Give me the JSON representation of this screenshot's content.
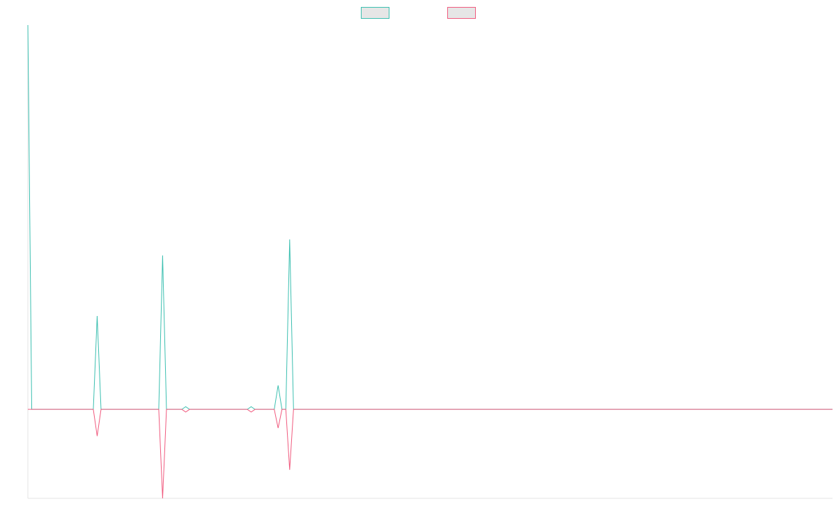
{
  "chart_data": {
    "type": "line",
    "title": "",
    "xlabel": "",
    "ylabel": "",
    "legend_position": "top-center",
    "grid": false,
    "x": [
      0,
      1,
      2,
      3,
      4,
      5,
      6,
      7,
      8,
      9,
      10,
      11,
      12,
      13,
      14,
      15,
      16,
      17,
      18,
      19,
      20,
      21,
      22,
      23,
      24,
      25,
      26,
      27,
      28,
      29,
      30,
      31,
      32,
      33,
      34,
      35,
      36,
      37,
      38,
      39,
      40,
      41,
      42,
      43,
      44,
      45,
      46,
      47,
      48,
      49,
      50,
      51,
      52,
      53,
      54,
      55,
      56,
      57,
      58,
      59,
      60,
      61,
      62,
      63,
      64,
      65,
      66,
      67,
      68,
      69,
      70,
      71,
      72,
      73,
      74,
      75,
      76,
      77,
      78,
      79,
      80,
      81,
      82,
      83,
      84,
      85,
      86,
      87,
      88,
      89,
      90,
      91,
      92,
      93,
      94,
      95,
      96,
      97,
      98,
      99,
      100,
      101,
      102,
      103,
      104,
      105,
      106,
      107,
      108,
      109,
      110,
      111,
      112,
      113,
      114,
      115,
      116,
      117,
      118,
      119,
      120,
      121,
      122,
      123,
      124,
      125,
      126,
      127,
      128,
      129,
      130,
      131,
      132,
      133,
      134,
      135,
      136,
      137,
      138,
      139,
      140,
      141,
      142,
      143,
      144,
      145,
      146,
      147,
      148,
      149,
      150,
      151,
      152,
      153,
      154,
      155,
      156,
      157,
      158,
      159,
      160,
      161,
      162,
      163,
      164,
      165,
      166,
      167,
      168,
      169,
      170,
      171,
      172,
      173,
      174,
      175,
      176,
      177,
      178,
      179,
      180,
      181,
      182,
      183,
      184,
      185,
      186,
      187,
      188,
      189,
      190,
      191,
      192,
      193,
      194,
      195,
      196,
      197,
      198,
      199,
      200,
      201,
      202,
      203,
      204,
      205,
      206,
      207,
      208,
      209
    ],
    "xlim": [
      0,
      209
    ],
    "ylim": [
      -100,
      432
    ],
    "series": [
      {
        "name": "",
        "color": "#3bbfb0",
        "points": [
          [
            0,
            432
          ],
          [
            1,
            0
          ],
          [
            17,
            0
          ],
          [
            18,
            105
          ],
          [
            19,
            0
          ],
          [
            34,
            0
          ],
          [
            35,
            173
          ],
          [
            36,
            0
          ],
          [
            40,
            0
          ],
          [
            41,
            3
          ],
          [
            42,
            0
          ],
          [
            57,
            0
          ],
          [
            58,
            3
          ],
          [
            59,
            0
          ],
          [
            64,
            0
          ],
          [
            65,
            27
          ],
          [
            66,
            0
          ],
          [
            67,
            0
          ],
          [
            68,
            191
          ],
          [
            69,
            0
          ],
          [
            209,
            0
          ]
        ]
      },
      {
        "name": "",
        "color": "#f05a7e",
        "points": [
          [
            0,
            0
          ],
          [
            1,
            0
          ],
          [
            17,
            0
          ],
          [
            18,
            -30
          ],
          [
            19,
            0
          ],
          [
            34,
            0
          ],
          [
            35,
            -100
          ],
          [
            36,
            0
          ],
          [
            40,
            0
          ],
          [
            41,
            -3
          ],
          [
            42,
            0
          ],
          [
            57,
            0
          ],
          [
            58,
            -3
          ],
          [
            59,
            0
          ],
          [
            64,
            0
          ],
          [
            65,
            -21
          ],
          [
            66,
            0
          ],
          [
            67,
            0
          ],
          [
            68,
            -68
          ],
          [
            69,
            0
          ],
          [
            209,
            0
          ]
        ]
      }
    ]
  }
}
